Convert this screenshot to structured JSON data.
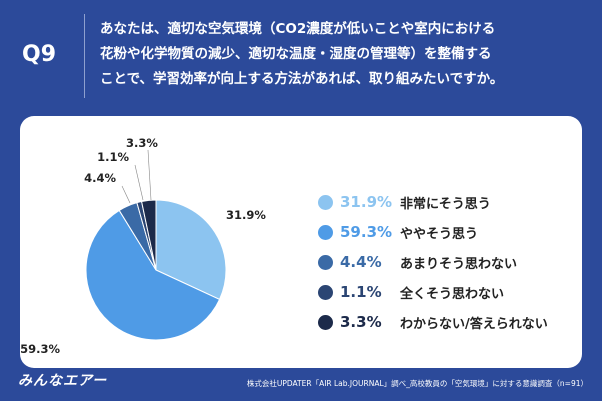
{
  "question": {
    "label": "Q9",
    "text": "あなたは、適切な空気環境（CO2濃度が低いことや室内における\n花粉や化学物質の減少、適切な温度・湿度の管理等）を整備する\nことで、学習効率が向上する方法があれば、取り組みたいですか。"
  },
  "chart_data": {
    "type": "pie",
    "title": "",
    "categories": [
      "非常にそう思う",
      "ややそう思う",
      "あまりそう思わない",
      "全くそう思わない",
      "わからない/答えられない"
    ],
    "values": [
      31.9,
      59.3,
      4.4,
      1.1,
      3.3
    ],
    "data_labels": [
      "31.9%",
      "59.3%",
      "4.4%",
      "1.1%",
      "3.3%"
    ],
    "colors": [
      "#8cc4f0",
      "#4f9be6",
      "#3a6aa6",
      "#2b4573",
      "#1c2a4a"
    ],
    "start": "12 o'clock",
    "direction": "clockwise",
    "legend_placement": "right"
  },
  "legend": {
    "items": [
      {
        "pct": "31.9%",
        "label": "非常にそう思う"
      },
      {
        "pct": "59.3%",
        "label": "ややそう思う"
      },
      {
        "pct": "4.4%",
        "label": "あまりそう思わない"
      },
      {
        "pct": "1.1%",
        "label": "全くそう思わない"
      },
      {
        "pct": "3.3%",
        "label": "わからない/答えられない"
      }
    ]
  },
  "footer": {
    "logo": "みんなエアー",
    "source": "株式会社UPDATER「AIR Lab.JOURNAL」調べ_高校教員の「空気環境」に対する意識調査（n=91）"
  },
  "theme": {
    "background": "#2c4a9a",
    "card": "#ffffff"
  }
}
